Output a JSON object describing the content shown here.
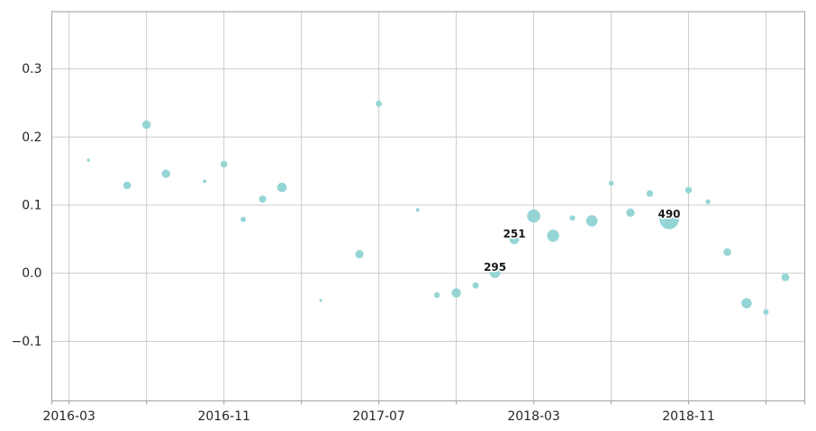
{
  "chart_data": {
    "type": "scatter",
    "subtype": "bubble",
    "title": "",
    "xlabel": "",
    "ylabel": "",
    "grid": true,
    "legend": false,
    "marker_color": "#8fd3d3",
    "annotation_values": [
      "295",
      "251",
      "490"
    ],
    "x_axis": {
      "gridlines": [
        "2016-03",
        "2016-07",
        "2016-11",
        "2017-03",
        "2017-07",
        "2017-11",
        "2018-03",
        "2018-07",
        "2018-11",
        "2019-03"
      ],
      "tick_labels": [
        "2016-03",
        "2016-11",
        "2017-07",
        "2018-03",
        "2018-11"
      ],
      "xlim_months_since_2016_03": [
        -0.893,
        38.0
      ]
    },
    "y_axis": {
      "ticks": [
        -0.1,
        0.0,
        0.1,
        0.2,
        0.3
      ],
      "tick_labels": [
        "−0.1",
        "0.0",
        "0.1",
        "0.2",
        "0.3"
      ],
      "ylim": [
        -0.1874,
        0.384
      ]
    },
    "points": [
      {
        "date": "2016-04",
        "y": 0.166,
        "r": 1.8
      },
      {
        "date": "2016-06",
        "y": 0.129,
        "r": 4.3
      },
      {
        "date": "2016-07",
        "y": 0.218,
        "r": 4.7
      },
      {
        "date": "2016-08",
        "y": 0.146,
        "r": 4.7
      },
      {
        "date": "2016-10",
        "y": 0.135,
        "r": 2.0
      },
      {
        "date": "2016-11",
        "y": 0.16,
        "r": 3.8
      },
      {
        "date": "2016-12",
        "y": 0.079,
        "r": 3.0
      },
      {
        "date": "2017-01",
        "y": 0.109,
        "r": 4.0
      },
      {
        "date": "2017-02",
        "y": 0.126,
        "r": 5.3
      },
      {
        "date": "2017-04",
        "y": -0.04,
        "r": 1.6
      },
      {
        "date": "2017-06",
        "y": 0.028,
        "r": 4.6
      },
      {
        "date": "2017-07",
        "y": 0.249,
        "r": 3.4
      },
      {
        "date": "2017-09",
        "y": 0.093,
        "r": 2.0
      },
      {
        "date": "2017-10",
        "y": -0.032,
        "r": 3.2
      },
      {
        "date": "2017-11",
        "y": -0.029,
        "r": 5.2
      },
      {
        "date": "2017-12",
        "y": -0.018,
        "r": 3.5
      },
      {
        "date": "2018-01",
        "y": 0.001,
        "r": 6.0,
        "label": "295"
      },
      {
        "date": "2018-02",
        "y": 0.05,
        "r": 5.5,
        "label": "251"
      },
      {
        "date": "2018-03",
        "y": 0.084,
        "r": 7.3
      },
      {
        "date": "2018-04",
        "y": 0.055,
        "r": 6.7
      },
      {
        "date": "2018-05",
        "y": 0.081,
        "r": 3.0
      },
      {
        "date": "2018-06",
        "y": 0.077,
        "r": 6.3
      },
      {
        "date": "2018-07",
        "y": 0.132,
        "r": 2.7
      },
      {
        "date": "2018-08",
        "y": 0.089,
        "r": 4.7
      },
      {
        "date": "2018-09",
        "y": 0.117,
        "r": 3.7
      },
      {
        "date": "2018-10",
        "y": 0.079,
        "r": 10.8,
        "label": "490"
      },
      {
        "date": "2018-11",
        "y": 0.122,
        "r": 3.7
      },
      {
        "date": "2018-12",
        "y": 0.105,
        "r": 2.7
      },
      {
        "date": "2019-01",
        "y": 0.031,
        "r": 4.3
      },
      {
        "date": "2019-02",
        "y": -0.044,
        "r": 5.7
      },
      {
        "date": "2019-03",
        "y": -0.057,
        "r": 3.0
      },
      {
        "date": "2019-04",
        "y": -0.006,
        "r": 4.3
      }
    ]
  },
  "colors": {
    "marker": "#8fd3d3",
    "gridline": "#cccccc",
    "spine": "#ababab",
    "tick_text": "#262626",
    "annotation_text": "#1a1a1a",
    "annotation_halo": "#ffffff",
    "background": "#ffffff"
  }
}
